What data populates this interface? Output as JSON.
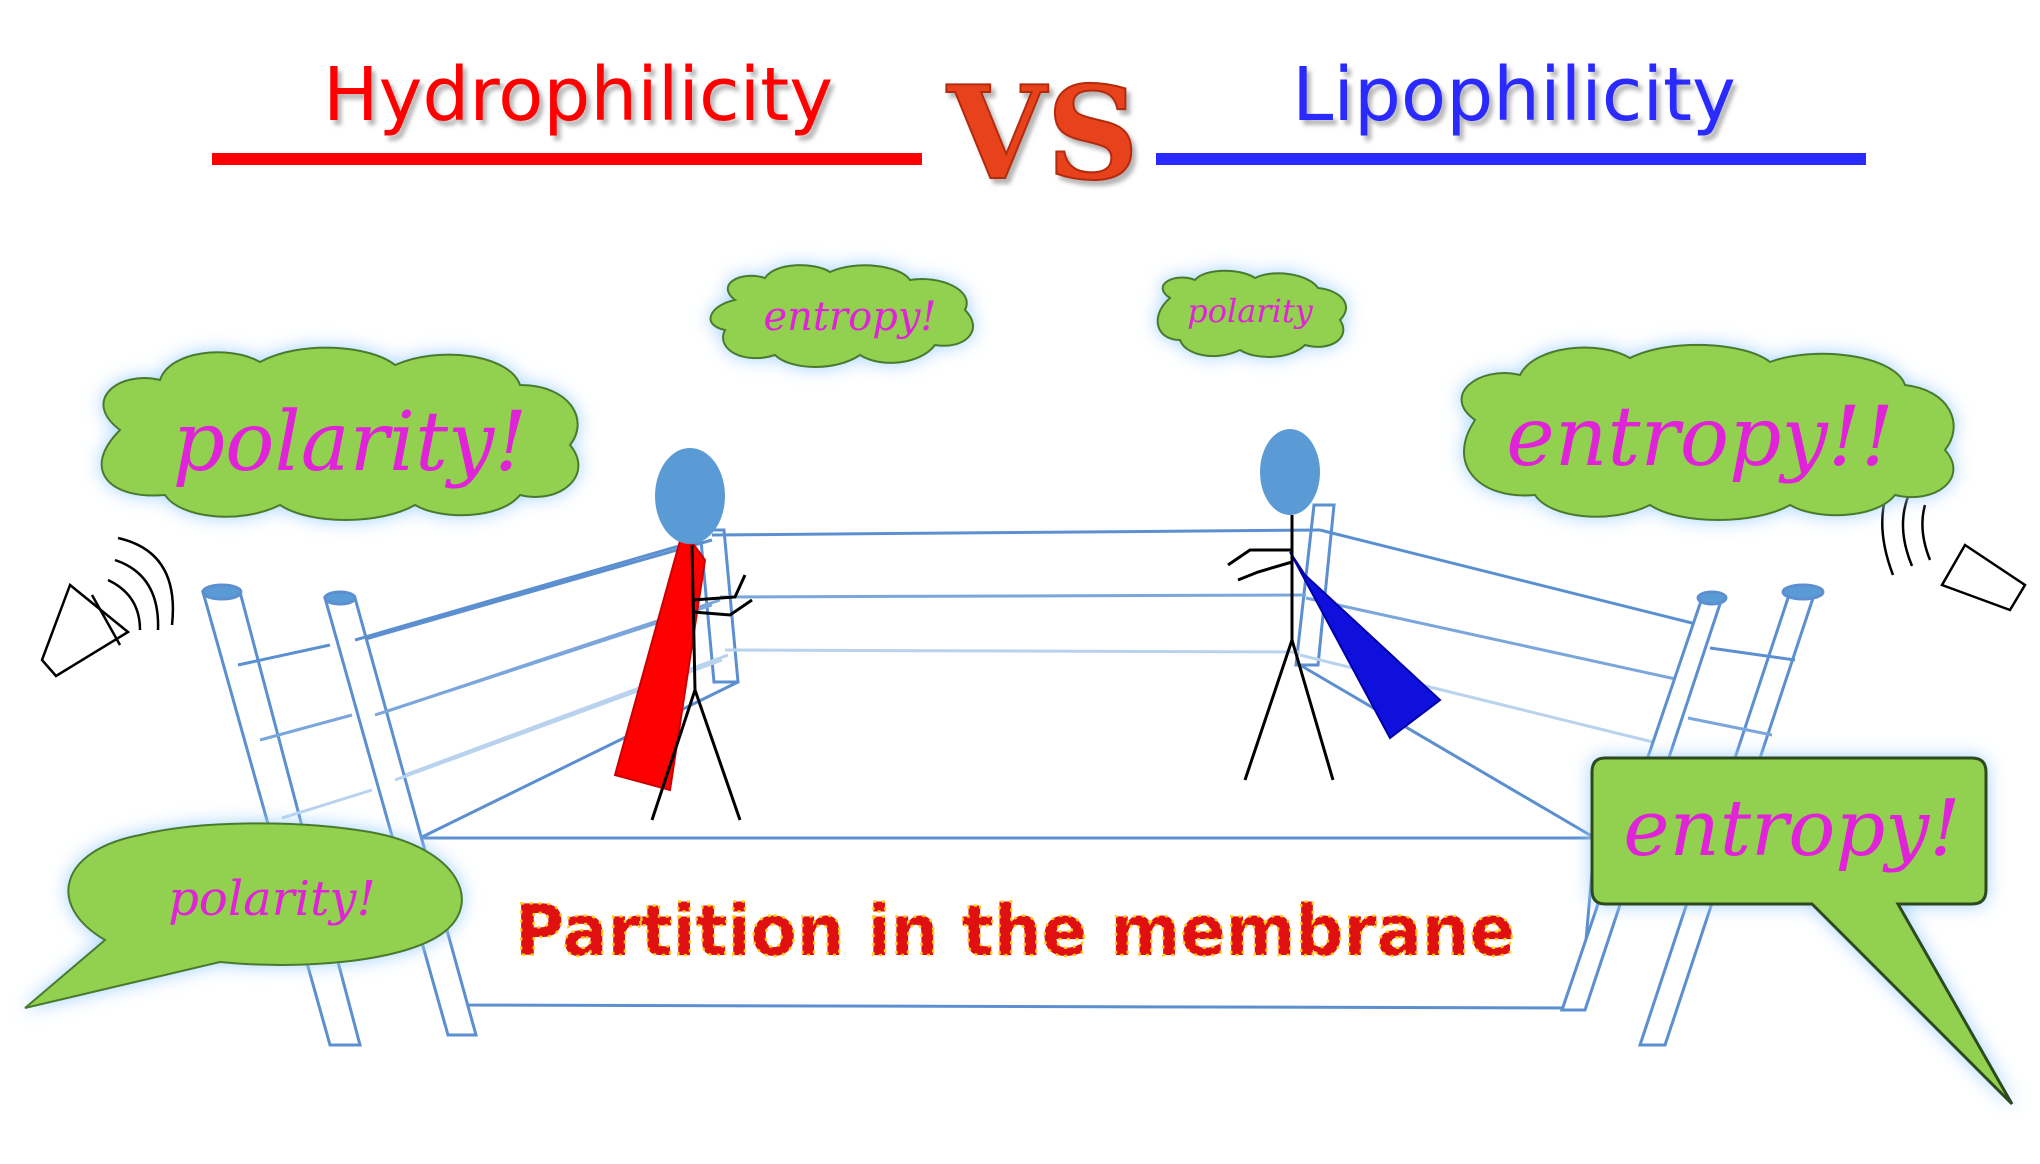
{
  "title": {
    "left": "Hydrophilicity",
    "vs": "VS",
    "right": "Lipophilicity"
  },
  "bubbles": {
    "left_big": "polarity!",
    "left_small": "entropy!",
    "right_small": "polarity",
    "right_big": "entropy!!",
    "left_speech": "polarity!",
    "right_speech": "entropy!"
  },
  "banner": "Partition in the membrane",
  "colors": {
    "left": "#ff0000",
    "right": "#2a2aff",
    "vs": "#e8431a",
    "bubble_fill": "#92d050",
    "bubble_text": "#e020d8",
    "ring": "#5b8fd0",
    "head": "#5b9bd5",
    "banner_fill": "#e01010",
    "banner_dots": "#ffd21a"
  },
  "icons": [
    "megaphone-left-icon",
    "megaphone-right-icon"
  ]
}
